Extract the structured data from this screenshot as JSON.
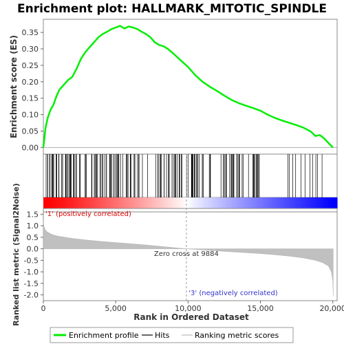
{
  "chart_data": {
    "type": "line",
    "title": "Enrichment plot: HALLMARK_MITOTIC_SPINDLE",
    "xlabel": "Rank in Ordered Dataset",
    "xlim": [
      0,
      20300
    ],
    "x_ticks": [
      "0",
      "5,000",
      "10,000",
      "15,000",
      "20,000"
    ],
    "x_tick_values": [
      0,
      5000,
      10000,
      15000,
      20000
    ],
    "top_panel": {
      "ylabel": "Enrichment score (ES)",
      "ylim": [
        -0.02,
        0.39
      ],
      "y_ticks": [
        "0.00",
        "0.05",
        "0.10",
        "0.15",
        "0.20",
        "0.25",
        "0.30",
        "0.35"
      ],
      "y_tick_values": [
        0,
        0.05,
        0.1,
        0.15,
        0.2,
        0.25,
        0.3,
        0.35
      ],
      "series_name": "Enrichment profile",
      "color": "#00ee00",
      "x": [
        0,
        150,
        300,
        500,
        700,
        900,
        1100,
        1300,
        1500,
        1700,
        2000,
        2300,
        2600,
        2900,
        3200,
        3500,
        3800,
        4100,
        4400,
        4700,
        5000,
        5300,
        5600,
        5900,
        6200,
        6500,
        6800,
        7100,
        7400,
        7700,
        8000,
        8300,
        8600,
        9000,
        9500,
        10000,
        10500,
        11000,
        11500,
        12000,
        12500,
        13000,
        13500,
        14000,
        14500,
        15000,
        15500,
        16000,
        16500,
        17000,
        17500,
        18000,
        18500,
        18800,
        19100,
        19400,
        19700,
        20000
      ],
      "y": [
        0.0,
        0.06,
        0.09,
        0.115,
        0.13,
        0.155,
        0.175,
        0.185,
        0.195,
        0.205,
        0.215,
        0.24,
        0.27,
        0.29,
        0.305,
        0.32,
        0.335,
        0.345,
        0.352,
        0.36,
        0.365,
        0.37,
        0.362,
        0.368,
        0.365,
        0.36,
        0.352,
        0.345,
        0.335,
        0.32,
        0.312,
        0.308,
        0.3,
        0.285,
        0.265,
        0.245,
        0.22,
        0.2,
        0.185,
        0.172,
        0.158,
        0.145,
        0.135,
        0.127,
        0.12,
        0.112,
        0.1,
        0.09,
        0.082,
        0.075,
        0.068,
        0.06,
        0.048,
        0.035,
        0.038,
        0.028,
        0.014,
        0.0
      ]
    },
    "middle_panel": {
      "series_name": "Hits",
      "label_pos": "'1' (positively correlated)",
      "label_neg": "'3' (negatively correlated)",
      "hits_dense_ranges": [
        [
          0,
          3800
        ],
        [
          4000,
          6700
        ],
        [
          7900,
          9600
        ],
        [
          10200,
          11800
        ],
        [
          12500,
          13900
        ],
        [
          14500,
          15200
        ]
      ],
      "hits_sparse_ranges": [
        [
          3800,
          4000
        ],
        [
          6700,
          7900
        ],
        [
          9600,
          10200
        ],
        [
          11800,
          12500
        ],
        [
          13900,
          14500
        ],
        [
          15200,
          19300
        ]
      ]
    },
    "bottom_panel": {
      "ylabel": "Ranked list metric (Signal2Noise)",
      "series_name": "Ranking metric scores",
      "ylim": [
        -2.25,
        1.6
      ],
      "y_ticks": [
        "-2.0",
        "-1.5",
        "-1.0",
        "-0.5",
        "0.0",
        "0.5",
        "1.0",
        "1.5"
      ],
      "y_tick_values": [
        -2.0,
        -1.5,
        -1.0,
        -0.5,
        0.0,
        0.5,
        1.0,
        1.5
      ],
      "x": [
        0,
        50,
        150,
        300,
        600,
        1000,
        2000,
        3000,
        4000,
        5000,
        6000,
        7000,
        8000,
        9000,
        9884,
        11000,
        12000,
        13000,
        14000,
        15000,
        16000,
        17000,
        18000,
        18800,
        19300,
        19700,
        19900,
        20000,
        20030
      ],
      "y": [
        1.2,
        0.95,
        0.8,
        0.72,
        0.62,
        0.55,
        0.45,
        0.38,
        0.32,
        0.27,
        0.22,
        0.17,
        0.11,
        0.05,
        0.0,
        -0.05,
        -0.09,
        -0.13,
        -0.17,
        -0.21,
        -0.26,
        -0.32,
        -0.4,
        -0.5,
        -0.6,
        -0.75,
        -1.0,
        -1.4,
        -2.05
      ],
      "zero_cross_label": "Zero cross at 9884",
      "zero_cross": 9884
    },
    "legend": [
      "Enrichment profile",
      "Hits",
      "Ranking metric scores"
    ],
    "legend_position": "bottom",
    "grid": false
  }
}
